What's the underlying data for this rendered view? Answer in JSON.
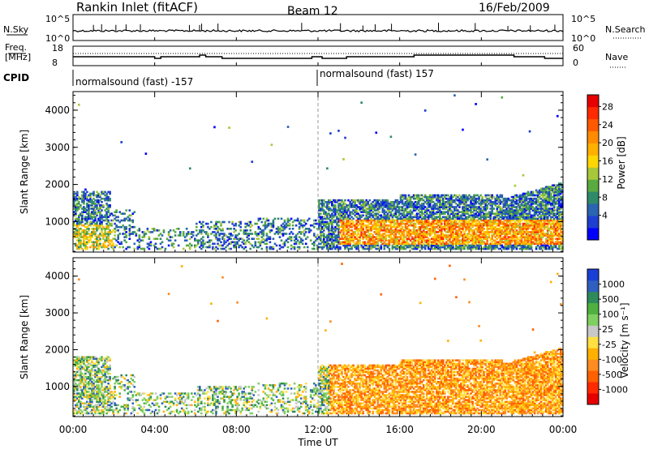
{
  "header": {
    "station": "Rankin Inlet (fitACF)",
    "beam": "Beam 12",
    "date": "16/Feb/2009"
  },
  "noise_panel": {
    "left_label": "N.Sky",
    "left_ticks": [
      "10^5",
      "10^0"
    ],
    "right_ticks": [
      "10^5",
      "10^0"
    ],
    "right_label": "N.Search"
  },
  "freq_panel": {
    "left_label_1": "Freq.",
    "left_label_2": "[MHz]",
    "left_ticks": [
      "18",
      "8"
    ],
    "right_ticks": [
      "60",
      "0"
    ],
    "right_label": "Nave"
  },
  "cpid": {
    "label": "CPID",
    "segments": [
      {
        "text": "normalsound (fast) -157",
        "start_hour": 0,
        "end_hour": 12
      },
      {
        "text": "normalsound (fast) 157",
        "start_hour": 12,
        "end_hour": 24
      }
    ]
  },
  "chart_data": [
    {
      "type": "heatmap",
      "name": "power",
      "x": {
        "unit": "hour",
        "range": [
          0,
          24
        ]
      },
      "ylabel": "Slant Range [km]",
      "ylim": [
        180,
        4500
      ],
      "yticks": [
        "1000",
        "2000",
        "3000",
        "4000"
      ],
      "ytick_values": [
        1000,
        2000,
        3000,
        4000
      ],
      "colorbar": {
        "label": "Power [dB]",
        "ticks": [
          "4",
          "8",
          "12",
          "16",
          "20",
          "24",
          "28"
        ],
        "colors": [
          "#0000ff",
          "#1e3fd0",
          "#2b64b0",
          "#2f8a6a",
          "#5aaa40",
          "#a8c83a",
          "#ffd700",
          "#ffb000",
          "#ff8c00",
          "#ff5a00",
          "#ff2a00",
          "#e60000"
        ]
      },
      "reference_time_hour": 12
    },
    {
      "type": "heatmap",
      "name": "velocity",
      "x": {
        "unit": "hour",
        "range": [
          0,
          24
        ]
      },
      "xlabel": "Time UT",
      "xticks": [
        "00:00",
        "04:00",
        "08:00",
        "12:00",
        "16:00",
        "20:00",
        "00:00"
      ],
      "xtick_hours": [
        0,
        4,
        8,
        12,
        16,
        20,
        24
      ],
      "ylabel": "Slant Range [km]",
      "ylim": [
        180,
        4500
      ],
      "yticks": [
        "1000",
        "2000",
        "3000",
        "4000"
      ],
      "ytick_values": [
        1000,
        2000,
        3000,
        4000
      ],
      "colorbar": {
        "label": "Velocity [m s⁻¹]",
        "ticks": [
          "1000",
          "500",
          "100",
          "25",
          "-25",
          "-100",
          "-500",
          "-1000"
        ],
        "colors": [
          "#1a3fd6",
          "#2f5fbf",
          "#2e8a5a",
          "#4fb040",
          "#7fd060",
          "#c8c8c8",
          "#ffe040",
          "#ffb000",
          "#ff8c20",
          "#ff6000",
          "#ff2a00",
          "#e60000"
        ]
      },
      "reference_time_hour": 12
    }
  ]
}
